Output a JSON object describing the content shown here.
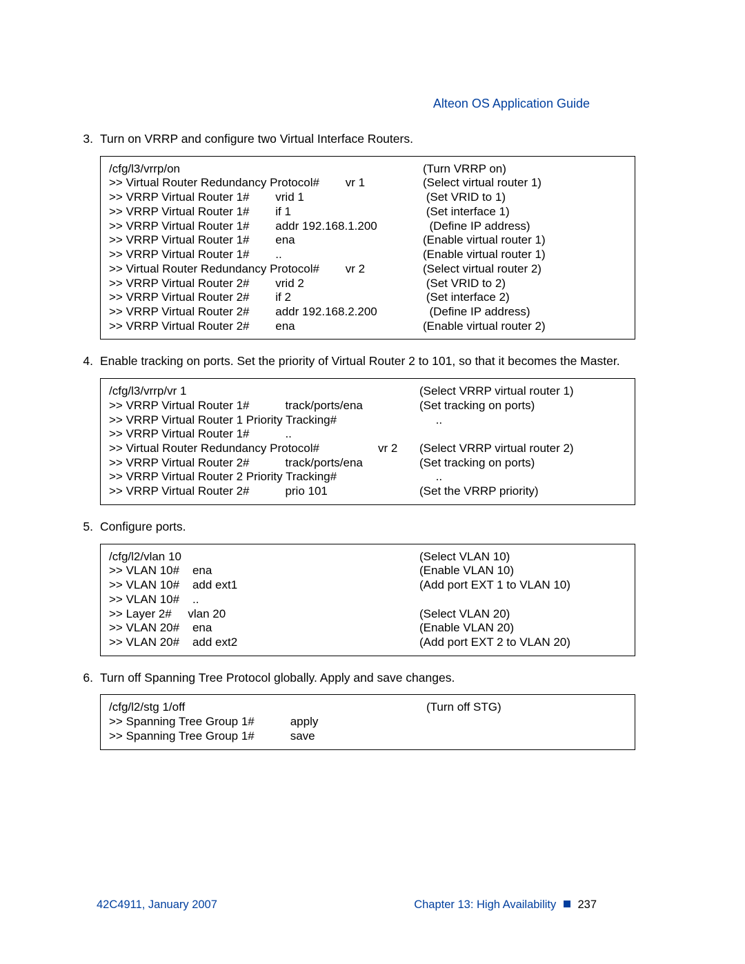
{
  "header": {
    "title": "Alteon OS  Application Guide"
  },
  "steps": {
    "s3": {
      "num": "3.",
      "text": "Turn on VRRP and configure two Virtual Interface Routers."
    },
    "s4": {
      "num": "4.",
      "text": "Enable tracking on ports. Set the priority of Virtual Router 2 to 101, so that it becomes the Master."
    },
    "s5": {
      "num": "5.",
      "text": "Configure ports."
    },
    "s6": {
      "num": "6.",
      "text": "Turn off Spanning Tree Protocol globally. Apply and save changes."
    }
  },
  "box3": [
    {
      "l": "/cfg/l3/vrrp/on",
      "r": "(Turn VRRP on)"
    },
    {
      "l": ">> Virtual Router Redundancy Protocol#        vr 1",
      "r": "(Select virtual router 1)"
    },
    {
      "l": ">> VRRP Virtual Router 1#        vrid 1",
      "r": " (Set VRID to 1)"
    },
    {
      "l": ">> VRRP Virtual Router 1#        if 1",
      "r": " (Set interface 1)"
    },
    {
      "l": ">> VRRP Virtual Router 1#        addr 192.168.1.200",
      "r": "  (Define IP address)"
    },
    {
      "l": ">> VRRP Virtual Router 1#        ena",
      "r": "(Enable virtual router 1)"
    },
    {
      "l": ">> VRRP Virtual Router 1#        ..",
      "r": "(Enable virtual router 1)"
    },
    {
      "l": ">> Virtual Router Redundancy Protocol#        vr 2",
      "r": "(Select virtual router 2)"
    },
    {
      "l": ">> VRRP Virtual Router 2#        vrid 2",
      "r": " (Set VRID to 2)"
    },
    {
      "l": ">> VRRP Virtual Router 2#        if 2",
      "r": " (Set interface 2)"
    },
    {
      "l": ">> VRRP Virtual Router 2#        addr 192.168.2.200",
      "r": "  (Define IP address)"
    },
    {
      "l": ">> VRRP Virtual Router 2#        ena",
      "r": "(Enable virtual router 2)"
    }
  ],
  "box4": [
    {
      "l": "/cfg/l3/vrrp/vr 1",
      "r": "(Select VRRP virtual router 1)"
    },
    {
      "l": ">> VRRP Virtual Router 1#           track/ports/ena",
      "r": "(Set tracking on ports)"
    },
    {
      "l": ">> VRRP Virtual Router 1 Priority Tracking#",
      "r": "     .."
    },
    {
      "l": ">> VRRP Virtual Router 1#           ..",
      "r": ""
    },
    {
      "l": ">> Virtual Router Redundancy Protocol#                  vr 2",
      "r": "(Select VRRP virtual router 2)"
    },
    {
      "l": ">> VRRP Virtual Router 2#           track/ports/ena",
      "r": "(Set tracking on ports)"
    },
    {
      "l": ">> VRRP Virtual Router 2 Priority Tracking#",
      "r": "     .."
    },
    {
      "l": ">> VRRP Virtual Router 2#           prio 101",
      "r": "(Set the VRRP priority)"
    }
  ],
  "box5": [
    {
      "l": "/cfg/l2/vlan 10",
      "r": "(Select VLAN 10)"
    },
    {
      "l": ">> VLAN 10#    ena",
      "r": "(Enable VLAN 10)"
    },
    {
      "l": ">> VLAN 10#    add ext1",
      "r": "(Add port EXT 1 to VLAN 10)"
    },
    {
      "l": ">> VLAN 10#    ..",
      "r": ""
    },
    {
      "l": ">> Layer 2#     vlan 20",
      "r": "(Select VLAN 20)"
    },
    {
      "l": ">> VLAN 20#    ena",
      "r": "(Enable VLAN 20)"
    },
    {
      "l": ">> VLAN 20#    add ext2",
      "r": "(Add port EXT 2 to VLAN 20)"
    }
  ],
  "box6": [
    {
      "l": "/cfg/l2/stg 1/off",
      "r": "(Turn off STG)"
    },
    {
      "l": ">> Spanning Tree Group 1#           apply",
      "r": ""
    },
    {
      "l": ">> Spanning Tree Group 1#           save",
      "r": ""
    }
  ],
  "footer": {
    "left": "42C4911, January 2007",
    "chapter": "Chapter 13:  High Availability",
    "page": "237"
  }
}
